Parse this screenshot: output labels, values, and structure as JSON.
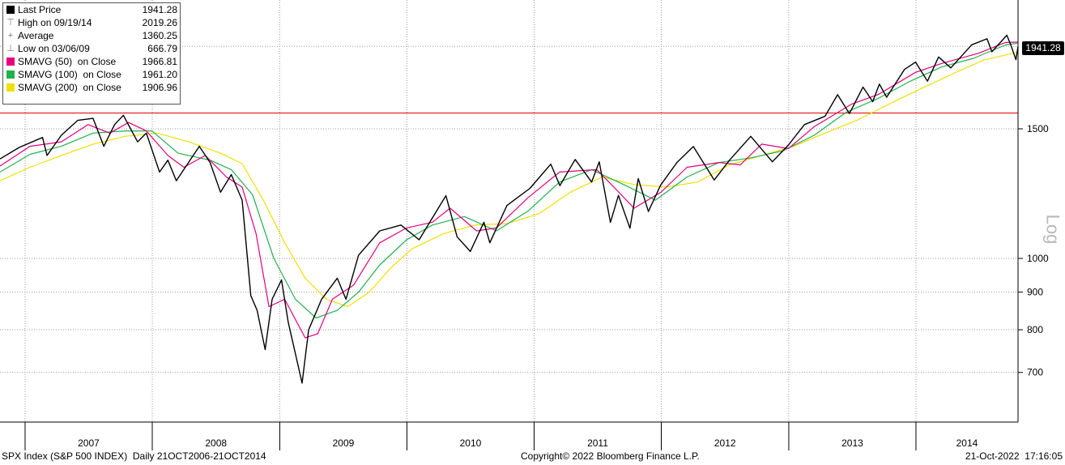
{
  "chart_data": {
    "type": "line",
    "scale": "log",
    "ylim": [
      600,
      2150
    ],
    "yticks": [
      700,
      800,
      900,
      1000,
      1500
    ],
    "xlim": [
      "2006-10-21",
      "2014-10-21"
    ],
    "x_labels": [
      "2007",
      "2008",
      "2009",
      "2010",
      "2011",
      "2012",
      "2013",
      "2014"
    ],
    "axis_label": "Log",
    "last_price_tag": "1941.28",
    "hline": {
      "value": 1576,
      "color": "#e00000"
    },
    "legend": [
      {
        "label": "Last Price",
        "value": "1941.28",
        "marker": "square",
        "color": "#000000"
      },
      {
        "label": "High on 09/19/14",
        "value": "2019.26",
        "marker": "high-icon",
        "color": "#777777"
      },
      {
        "label": "Average",
        "value": "1360.25",
        "marker": "average-icon",
        "color": "#777777"
      },
      {
        "label": "Low on 03/06/09",
        "value": "666.79",
        "marker": "low-icon",
        "color": "#777777"
      },
      {
        "label": "SMAVG (50)  on Close",
        "value": "1966.81",
        "marker": "square",
        "color": "#e6007e"
      },
      {
        "label": "SMAVG (100)  on Close",
        "value": "1961.20",
        "marker": "square",
        "color": "#22b14c"
      },
      {
        "label": "SMAVG (200)  on Close",
        "value": "1906.96",
        "marker": "square",
        "color": "#f0e000"
      }
    ],
    "series": [
      {
        "name": "Last Price",
        "color": "#000000",
        "points": [
          [
            "2006-10-21",
            1365
          ],
          [
            "2006-12-15",
            1415
          ],
          [
            "2007-02-20",
            1460
          ],
          [
            "2007-03-05",
            1380
          ],
          [
            "2007-04-15",
            1470
          ],
          [
            "2007-06-01",
            1540
          ],
          [
            "2007-07-15",
            1550
          ],
          [
            "2007-08-15",
            1420
          ],
          [
            "2007-09-15",
            1520
          ],
          [
            "2007-10-10",
            1565
          ],
          [
            "2007-11-20",
            1440
          ],
          [
            "2007-12-15",
            1480
          ],
          [
            "2008-01-22",
            1310
          ],
          [
            "2008-02-15",
            1360
          ],
          [
            "2008-03-10",
            1275
          ],
          [
            "2008-05-15",
            1420
          ],
          [
            "2008-06-15",
            1350
          ],
          [
            "2008-07-15",
            1230
          ],
          [
            "2008-08-15",
            1300
          ],
          [
            "2008-09-15",
            1200
          ],
          [
            "2008-10-10",
            890
          ],
          [
            "2008-10-28",
            850
          ],
          [
            "2008-11-20",
            752
          ],
          [
            "2008-12-10",
            880
          ],
          [
            "2009-01-06",
            935
          ],
          [
            "2009-01-25",
            820
          ],
          [
            "2009-03-06",
            677
          ],
          [
            "2009-03-25",
            800
          ],
          [
            "2009-05-01",
            880
          ],
          [
            "2009-06-15",
            940
          ],
          [
            "2009-07-10",
            880
          ],
          [
            "2009-08-15",
            1010
          ],
          [
            "2009-10-15",
            1090
          ],
          [
            "2009-12-15",
            1110
          ],
          [
            "2010-02-05",
            1060
          ],
          [
            "2010-04-23",
            1217
          ],
          [
            "2010-05-25",
            1070
          ],
          [
            "2010-07-02",
            1022
          ],
          [
            "2010-08-10",
            1120
          ],
          [
            "2010-08-27",
            1050
          ],
          [
            "2010-10-15",
            1180
          ],
          [
            "2010-12-20",
            1245
          ],
          [
            "2011-02-18",
            1343
          ],
          [
            "2011-03-16",
            1256
          ],
          [
            "2011-04-29",
            1363
          ],
          [
            "2011-06-15",
            1270
          ],
          [
            "2011-07-07",
            1353
          ],
          [
            "2011-08-08",
            1119
          ],
          [
            "2011-08-31",
            1218
          ],
          [
            "2011-10-03",
            1099
          ],
          [
            "2011-10-27",
            1284
          ],
          [
            "2011-11-25",
            1158
          ],
          [
            "2011-12-30",
            1257
          ],
          [
            "2012-02-15",
            1350
          ],
          [
            "2012-04-02",
            1419
          ],
          [
            "2012-06-01",
            1278
          ],
          [
            "2012-07-15",
            1360
          ],
          [
            "2012-09-14",
            1465
          ],
          [
            "2012-11-15",
            1353
          ],
          [
            "2012-12-31",
            1426
          ],
          [
            "2013-02-15",
            1520
          ],
          [
            "2013-04-15",
            1560
          ],
          [
            "2013-05-21",
            1669
          ],
          [
            "2013-06-24",
            1573
          ],
          [
            "2013-08-02",
            1709
          ],
          [
            "2013-08-30",
            1633
          ],
          [
            "2013-09-18",
            1725
          ],
          [
            "2013-10-09",
            1656
          ],
          [
            "2013-11-29",
            1806
          ],
          [
            "2013-12-31",
            1848
          ],
          [
            "2014-02-03",
            1741
          ],
          [
            "2014-03-07",
            1878
          ],
          [
            "2014-04-11",
            1815
          ],
          [
            "2014-06-10",
            1951
          ],
          [
            "2014-07-24",
            1988
          ],
          [
            "2014-08-07",
            1909
          ],
          [
            "2014-09-19",
            2010
          ],
          [
            "2014-10-01",
            1946
          ],
          [
            "2014-10-15",
            1862
          ],
          [
            "2014-10-21",
            1941
          ]
        ]
      },
      {
        "name": "SMAVG (50)  on Close",
        "color": "#e6007e",
        "points": [
          [
            "2006-10-21",
            1335
          ],
          [
            "2007-01-15",
            1420
          ],
          [
            "2007-04-15",
            1440
          ],
          [
            "2007-07-01",
            1520
          ],
          [
            "2007-09-01",
            1480
          ],
          [
            "2007-10-25",
            1530
          ],
          [
            "2007-12-15",
            1490
          ],
          [
            "2008-02-15",
            1380
          ],
          [
            "2008-04-01",
            1330
          ],
          [
            "2008-06-01",
            1380
          ],
          [
            "2008-08-01",
            1290
          ],
          [
            "2008-09-15",
            1250
          ],
          [
            "2008-10-25",
            1080
          ],
          [
            "2008-12-01",
            860
          ],
          [
            "2009-01-15",
            880
          ],
          [
            "2009-03-15",
            780
          ],
          [
            "2009-04-20",
            790
          ],
          [
            "2009-06-01",
            880
          ],
          [
            "2009-08-01",
            920
          ],
          [
            "2009-10-15",
            1050
          ],
          [
            "2009-12-31",
            1100
          ],
          [
            "2010-03-15",
            1120
          ],
          [
            "2010-05-05",
            1170
          ],
          [
            "2010-07-20",
            1090
          ],
          [
            "2010-09-15",
            1100
          ],
          [
            "2010-12-15",
            1210
          ],
          [
            "2011-03-15",
            1310
          ],
          [
            "2011-06-30",
            1320
          ],
          [
            "2011-08-25",
            1240
          ],
          [
            "2011-10-15",
            1170
          ],
          [
            "2011-12-31",
            1230
          ],
          [
            "2012-03-15",
            1330
          ],
          [
            "2012-06-15",
            1350
          ],
          [
            "2012-08-15",
            1340
          ],
          [
            "2012-10-15",
            1430
          ],
          [
            "2012-12-31",
            1410
          ],
          [
            "2013-03-15",
            1510
          ],
          [
            "2013-06-30",
            1620
          ],
          [
            "2013-09-15",
            1670
          ],
          [
            "2013-12-31",
            1790
          ],
          [
            "2014-03-15",
            1840
          ],
          [
            "2014-06-30",
            1900
          ],
          [
            "2014-09-15",
            1965
          ],
          [
            "2014-10-21",
            1967
          ]
        ]
      },
      {
        "name": "SMAVG (100)  on Close",
        "color": "#22b14c",
        "points": [
          [
            "2006-10-21",
            1310
          ],
          [
            "2007-01-15",
            1385
          ],
          [
            "2007-04-15",
            1420
          ],
          [
            "2007-07-15",
            1480
          ],
          [
            "2007-10-15",
            1490
          ],
          [
            "2007-12-31",
            1490
          ],
          [
            "2008-03-15",
            1390
          ],
          [
            "2008-06-15",
            1360
          ],
          [
            "2008-08-15",
            1320
          ],
          [
            "2008-10-15",
            1220
          ],
          [
            "2008-12-15",
            1000
          ],
          [
            "2009-02-15",
            880
          ],
          [
            "2009-04-15",
            830
          ],
          [
            "2009-06-15",
            850
          ],
          [
            "2009-08-15",
            900
          ],
          [
            "2009-10-15",
            980
          ],
          [
            "2009-12-31",
            1060
          ],
          [
            "2010-03-15",
            1110
          ],
          [
            "2010-06-15",
            1140
          ],
          [
            "2010-09-15",
            1090
          ],
          [
            "2010-12-15",
            1160
          ],
          [
            "2011-03-15",
            1270
          ],
          [
            "2011-06-15",
            1320
          ],
          [
            "2011-09-15",
            1260
          ],
          [
            "2011-12-15",
            1200
          ],
          [
            "2012-03-15",
            1290
          ],
          [
            "2012-06-15",
            1350
          ],
          [
            "2012-09-15",
            1370
          ],
          [
            "2012-12-15",
            1400
          ],
          [
            "2013-03-15",
            1470
          ],
          [
            "2013-06-15",
            1580
          ],
          [
            "2013-09-15",
            1650
          ],
          [
            "2013-12-15",
            1740
          ],
          [
            "2014-03-15",
            1820
          ],
          [
            "2014-06-15",
            1870
          ],
          [
            "2014-09-15",
            1950
          ],
          [
            "2014-10-21",
            1961
          ]
        ]
      },
      {
        "name": "SMAVG (200)  on Close",
        "color": "#f0e000",
        "points": [
          [
            "2006-10-21",
            1275
          ],
          [
            "2007-01-15",
            1330
          ],
          [
            "2007-04-15",
            1380
          ],
          [
            "2007-07-15",
            1430
          ],
          [
            "2007-10-15",
            1465
          ],
          [
            "2008-01-15",
            1480
          ],
          [
            "2008-04-15",
            1440
          ],
          [
            "2008-07-15",
            1390
          ],
          [
            "2008-09-15",
            1345
          ],
          [
            "2008-11-15",
            1200
          ],
          [
            "2009-01-15",
            1050
          ],
          [
            "2009-03-15",
            940
          ],
          [
            "2009-05-15",
            880
          ],
          [
            "2009-07-15",
            860
          ],
          [
            "2009-09-15",
            900
          ],
          [
            "2009-11-15",
            970
          ],
          [
            "2010-01-15",
            1030
          ],
          [
            "2010-04-15",
            1080
          ],
          [
            "2010-07-15",
            1110
          ],
          [
            "2010-10-15",
            1115
          ],
          [
            "2011-01-15",
            1150
          ],
          [
            "2011-04-15",
            1230
          ],
          [
            "2011-07-15",
            1290
          ],
          [
            "2011-10-15",
            1260
          ],
          [
            "2012-01-15",
            1250
          ],
          [
            "2012-04-15",
            1270
          ],
          [
            "2012-07-15",
            1340
          ],
          [
            "2012-10-15",
            1380
          ],
          [
            "2013-01-15",
            1420
          ],
          [
            "2013-04-15",
            1480
          ],
          [
            "2013-07-15",
            1540
          ],
          [
            "2013-10-15",
            1620
          ],
          [
            "2014-01-15",
            1700
          ],
          [
            "2014-04-15",
            1780
          ],
          [
            "2014-07-15",
            1860
          ],
          [
            "2014-10-21",
            1907
          ]
        ]
      }
    ]
  },
  "footer": {
    "left": "SPX Index (S&P 500 INDEX)  Daily 21OCT2006-21OCT2014",
    "center": "Copyright© 2022 Bloomberg Finance L.P.",
    "right": "21-Oct-2022  17:16:05"
  }
}
